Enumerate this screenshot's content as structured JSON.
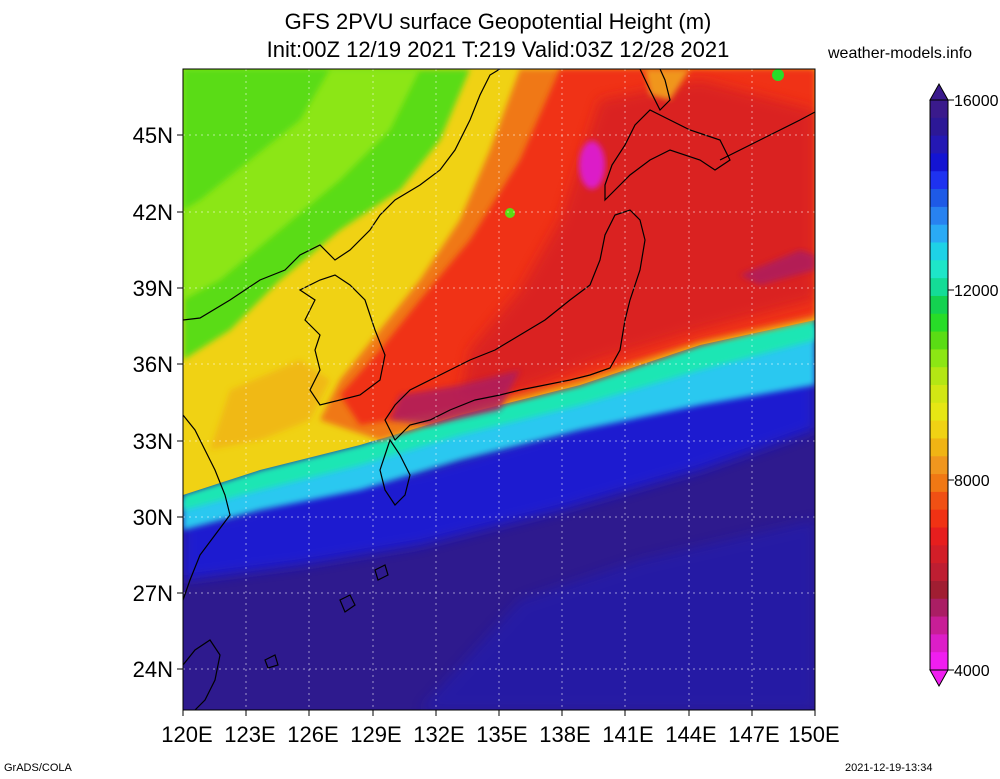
{
  "title_line1": "GFS 2PVU surface Geopotential Height (m)",
  "title_line2": "Init:00Z 12/19 2021 T:219 Valid:03Z 12/28 2021",
  "site": "weather-models.info",
  "footer_left": "GrADS/COLA",
  "footer_right": "2021-12-19-13:34",
  "map": {
    "lat_labels": [
      "45N",
      "42N",
      "39N",
      "36N",
      "33N",
      "30N",
      "27N",
      "24N"
    ],
    "lon_labels": [
      "120E",
      "123E",
      "126E",
      "129E",
      "132E",
      "135E",
      "138E",
      "141E",
      "144E",
      "147E",
      "150E"
    ]
  },
  "colorbar": {
    "labels": [
      "16000",
      "12000",
      "8000",
      "4000"
    ],
    "colors": [
      "#3a1a8c",
      "#2c1896",
      "#2418b4",
      "#1414d2",
      "#1e32f0",
      "#1e5ae6",
      "#2882f0",
      "#2aaaf5",
      "#1ed2e6",
      "#1ee6c8",
      "#14dc96",
      "#14d250",
      "#28dc28",
      "#5adc14",
      "#8ce614",
      "#b4e614",
      "#d2e614",
      "#e6e614",
      "#f0d214",
      "#f0b414",
      "#f0961e",
      "#f07814",
      "#f05014",
      "#f03214",
      "#e61e1e",
      "#d21e28",
      "#be1e32",
      "#a01e32",
      "#aa1e64",
      "#c81e96",
      "#dc1ec8",
      "#f01ef0"
    ]
  }
}
